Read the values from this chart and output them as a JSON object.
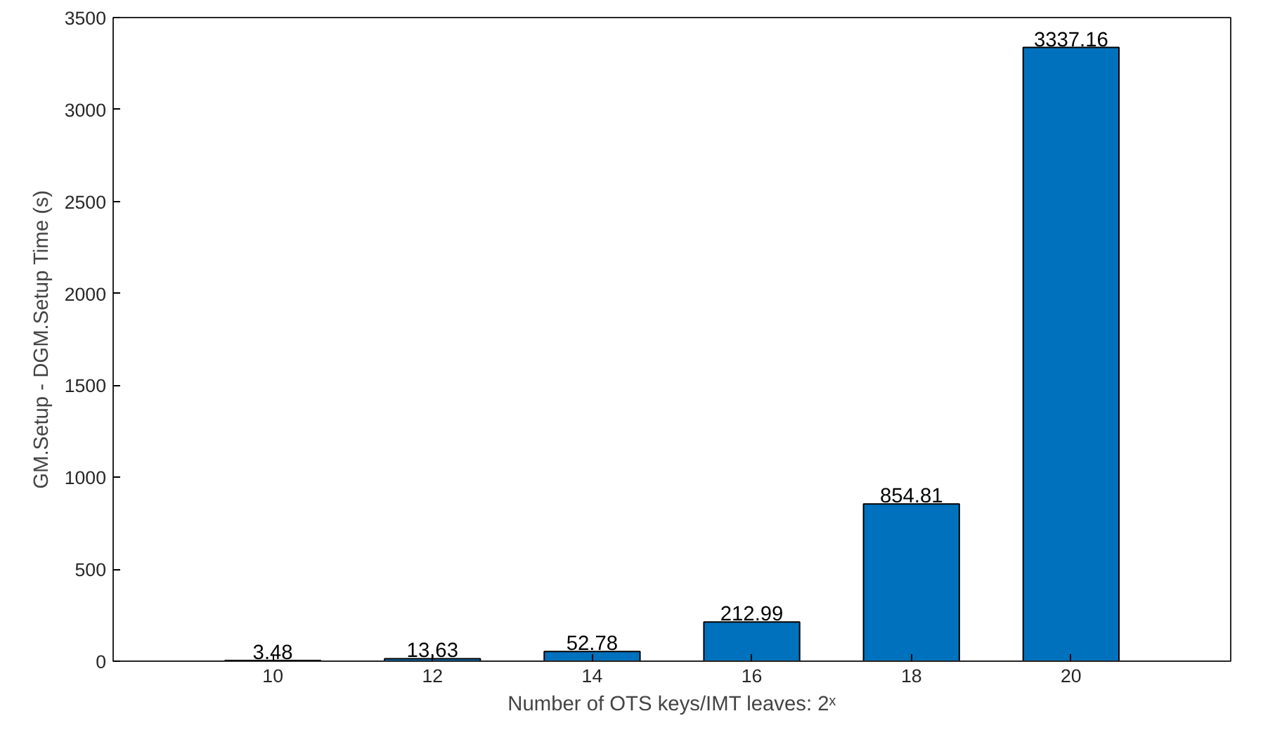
{
  "chart_data": {
    "type": "bar",
    "xlabel": "Number of OTS keys/IMT leaves: 2ˣ",
    "ylabel": "GM.Setup - DGM.Setup Time (s)",
    "x": [
      10,
      12,
      14,
      16,
      18,
      20
    ],
    "values": [
      3.48,
      13.63,
      52.78,
      212.99,
      854.81,
      3337.16
    ],
    "value_labels": [
      "3.48",
      "13,63",
      "52.78",
      "212.99",
      "854.81",
      "3337.16"
    ],
    "color": "#0072bd",
    "xlim": [
      8,
      22
    ],
    "xticks": [
      10,
      12,
      14,
      16,
      18,
      20
    ],
    "ylim": [
      0,
      3500
    ],
    "yticks": [
      0,
      500,
      1000,
      1500,
      2000,
      2500,
      3000,
      3500
    ],
    "grid": false
  }
}
